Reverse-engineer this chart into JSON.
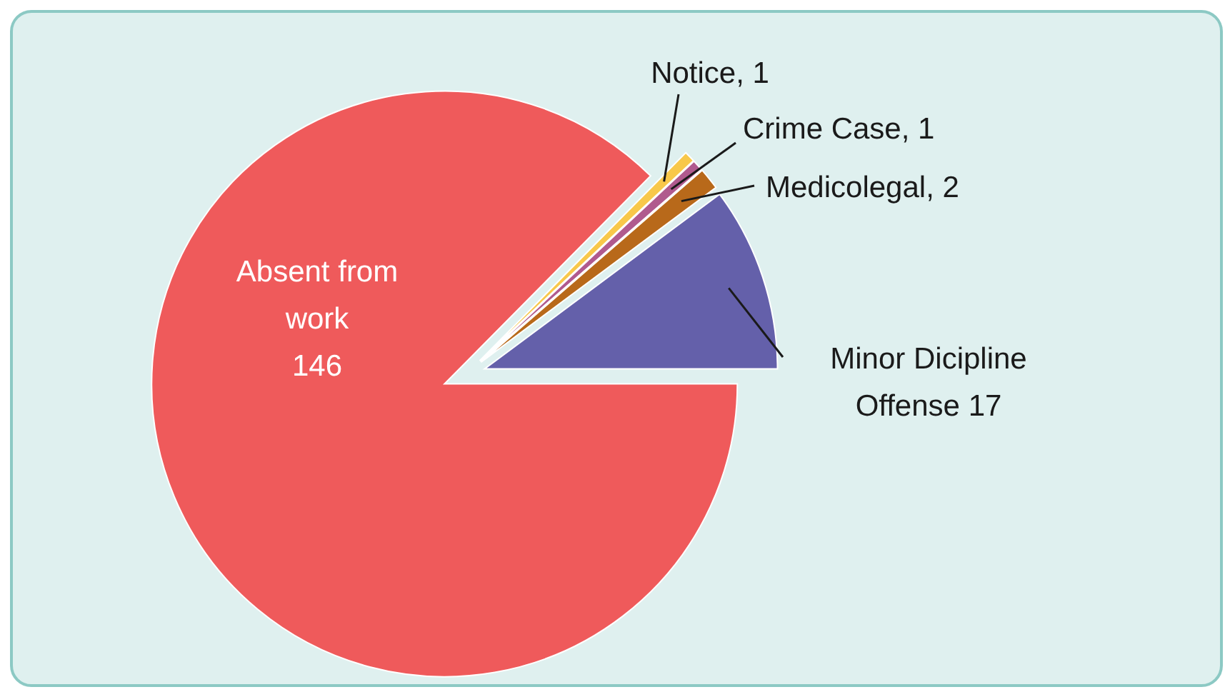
{
  "chart_data": {
    "type": "pie",
    "categories": [
      "Minor Dicipline Offense",
      "Medicolegal",
      "Crime Case",
      "Notice",
      "Absent from work"
    ],
    "values": [
      17,
      2,
      1,
      1,
      146
    ],
    "colors": [
      "#6460aa",
      "#b8691a",
      "#b05a8e",
      "#f8c84a",
      "#ef5a5b"
    ],
    "value_labels": [
      "17",
      ", 2",
      ", 1",
      ", 1",
      "146"
    ]
  }
}
